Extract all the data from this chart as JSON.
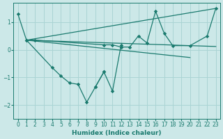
{
  "title": "",
  "xlabel": "Humidex (Indice chaleur)",
  "bg_color": "#cce8e8",
  "grid_color": "#aad4d4",
  "line_color": "#1a7a6e",
  "xlim": [
    -0.5,
    23.5
  ],
  "ylim": [
    -2.5,
    1.7
  ],
  "yticks": [
    -2,
    -1,
    0,
    1
  ],
  "xticks": [
    0,
    1,
    2,
    3,
    4,
    5,
    6,
    7,
    8,
    9,
    10,
    11,
    12,
    13,
    14,
    15,
    16,
    17,
    18,
    19,
    20,
    21,
    22,
    23
  ],
  "series": [
    {
      "x": [
        0,
        1,
        2,
        10,
        11,
        12,
        13,
        14,
        15,
        16,
        17,
        18,
        20,
        22,
        23
      ],
      "y": [
        1.3,
        0.35,
        0.35,
        0.18,
        0.18,
        0.1,
        0.1,
        0.5,
        0.25,
        1.4,
        0.6,
        0.15,
        0.15,
        0.5,
        1.5
      ],
      "marker": true
    },
    {
      "x": [
        1,
        4,
        5,
        6,
        7,
        8,
        9,
        10
      ],
      "y": [
        0.35,
        -0.65,
        -0.95,
        -1.2,
        -1.25,
        -1.9,
        -1.35,
        -0.8
      ],
      "marker": true
    },
    {
      "x": [
        9,
        10,
        11,
        12
      ],
      "y": [
        -1.35,
        -0.8,
        -1.5,
        0.18
      ],
      "marker": true
    },
    {
      "x": [
        1,
        20
      ],
      "y": [
        0.35,
        -0.28
      ],
      "marker": false
    },
    {
      "x": [
        1,
        23
      ],
      "y": [
        0.35,
        0.12
      ],
      "marker": false
    },
    {
      "x": [
        1,
        23
      ],
      "y": [
        0.35,
        1.5
      ],
      "marker": false
    }
  ]
}
